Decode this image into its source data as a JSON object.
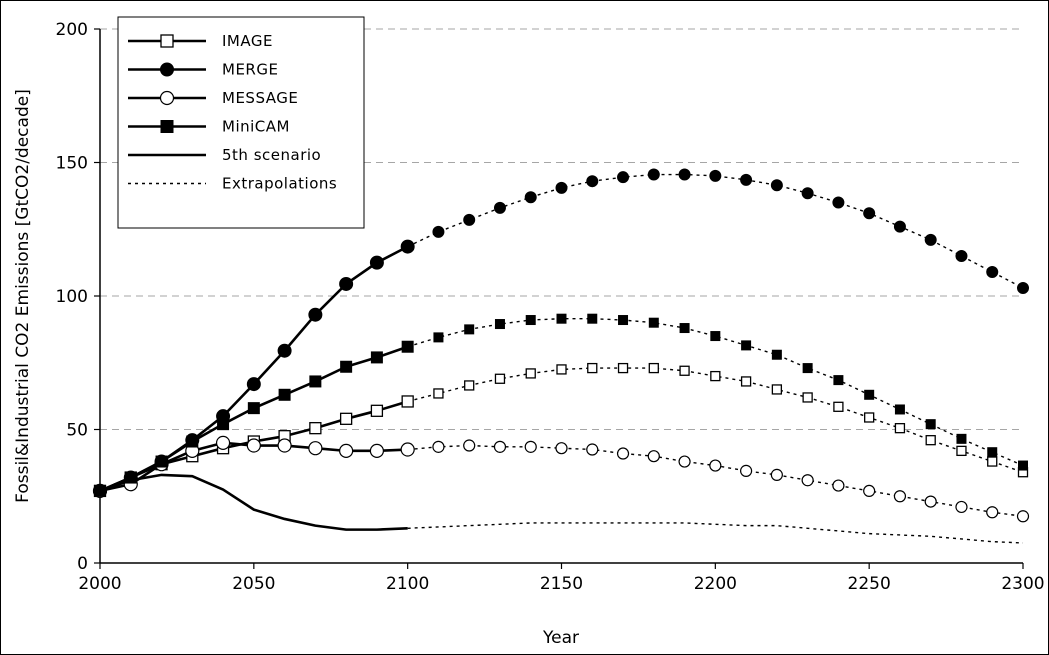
{
  "chart_data": {
    "type": "line",
    "title": "",
    "xlabel": "Year",
    "ylabel": "Fossil&Industrial CO2 Emissions [GtCO2/decade]",
    "xlim": [
      2000,
      2300
    ],
    "ylim": [
      0,
      200
    ],
    "xticks": [
      2000,
      2050,
      2100,
      2150,
      2200,
      2250,
      2300
    ],
    "yticks": [
      0,
      50,
      100,
      150,
      200
    ],
    "grid": "horizontal dashed",
    "legend_position": "top-left",
    "series": [
      {
        "name": "IMAGE",
        "marker": "open-square",
        "x": [
          2000,
          2010,
          2020,
          2030,
          2040,
          2050,
          2060,
          2070,
          2080,
          2090,
          2100,
          2110,
          2120,
          2130,
          2140,
          2150,
          2160,
          2170,
          2180,
          2190,
          2200,
          2210,
          2220,
          2230,
          2240,
          2250,
          2260,
          2270,
          2280,
          2290,
          2300
        ],
        "values": [
          27,
          32,
          37,
          40,
          43,
          45.5,
          47.5,
          50.5,
          54,
          57,
          60.5,
          63.5,
          66.5,
          69,
          71,
          72.5,
          73,
          73,
          73,
          72,
          70,
          68,
          65,
          62,
          58.5,
          54.5,
          50.5,
          46,
          42,
          38,
          34
        ]
      },
      {
        "name": "MERGE",
        "marker": "filled-circle",
        "x": [
          2000,
          2010,
          2020,
          2030,
          2040,
          2050,
          2060,
          2070,
          2080,
          2090,
          2100,
          2110,
          2120,
          2130,
          2140,
          2150,
          2160,
          2170,
          2180,
          2190,
          2200,
          2210,
          2220,
          2230,
          2240,
          2250,
          2260,
          2270,
          2280,
          2290,
          2300
        ],
        "values": [
          27,
          32,
          38,
          46,
          55,
          67,
          79.5,
          93,
          104.5,
          112.5,
          118.5,
          124,
          128.5,
          133,
          137,
          140.5,
          143,
          144.5,
          145.5,
          145.5,
          145,
          143.5,
          141.5,
          138.5,
          135,
          131,
          126,
          121,
          115,
          109,
          103
        ]
      },
      {
        "name": "MESSAGE",
        "marker": "open-circle",
        "x": [
          2000,
          2010,
          2020,
          2030,
          2040,
          2050,
          2060,
          2070,
          2080,
          2090,
          2100,
          2110,
          2120,
          2130,
          2140,
          2150,
          2160,
          2170,
          2180,
          2190,
          2200,
          2210,
          2220,
          2230,
          2240,
          2250,
          2260,
          2270,
          2280,
          2290,
          2300
        ],
        "values": [
          27,
          29.5,
          37,
          42,
          45,
          44,
          44,
          43,
          42,
          42,
          42.5,
          43.5,
          44,
          43.5,
          43.5,
          43,
          42.5,
          41,
          40,
          38,
          36.5,
          34.5,
          33,
          31,
          29,
          27,
          25,
          23,
          21,
          19,
          17.5
        ]
      },
      {
        "name": "MiniCAM",
        "marker": "filled-square",
        "x": [
          2000,
          2010,
          2020,
          2030,
          2040,
          2050,
          2060,
          2070,
          2080,
          2090,
          2100,
          2110,
          2120,
          2130,
          2140,
          2150,
          2160,
          2170,
          2180,
          2190,
          2200,
          2210,
          2220,
          2230,
          2240,
          2250,
          2260,
          2270,
          2280,
          2290,
          2300
        ],
        "values": [
          27,
          32,
          38,
          45.5,
          52,
          58,
          63,
          68,
          73.5,
          77,
          81,
          84.5,
          87.5,
          89.5,
          91,
          91.5,
          91.5,
          91,
          90,
          88,
          85,
          81.5,
          78,
          73,
          68.5,
          63,
          57.5,
          52,
          46.5,
          41.5,
          36.5
        ]
      },
      {
        "name": "5th scenario",
        "marker": "none",
        "x": [
          2000,
          2010,
          2020,
          2030,
          2040,
          2050,
          2060,
          2070,
          2080,
          2090,
          2100,
          2110,
          2120,
          2130,
          2140,
          2150,
          2160,
          2170,
          2180,
          2190,
          2200,
          2210,
          2220,
          2230,
          2240,
          2250,
          2260,
          2270,
          2280,
          2290,
          2300
        ],
        "values": [
          27,
          31,
          33,
          32.5,
          27.5,
          20,
          16.5,
          14,
          12.5,
          12.5,
          13,
          13.5,
          14,
          14.5,
          15,
          15,
          15,
          15,
          15,
          15,
          14.5,
          14,
          14,
          13,
          12,
          11,
          10.5,
          10,
          9,
          8,
          7.5
        ]
      }
    ],
    "extrapolation_from_x": 2100,
    "extrapolation_legend": "Extrapolations"
  }
}
